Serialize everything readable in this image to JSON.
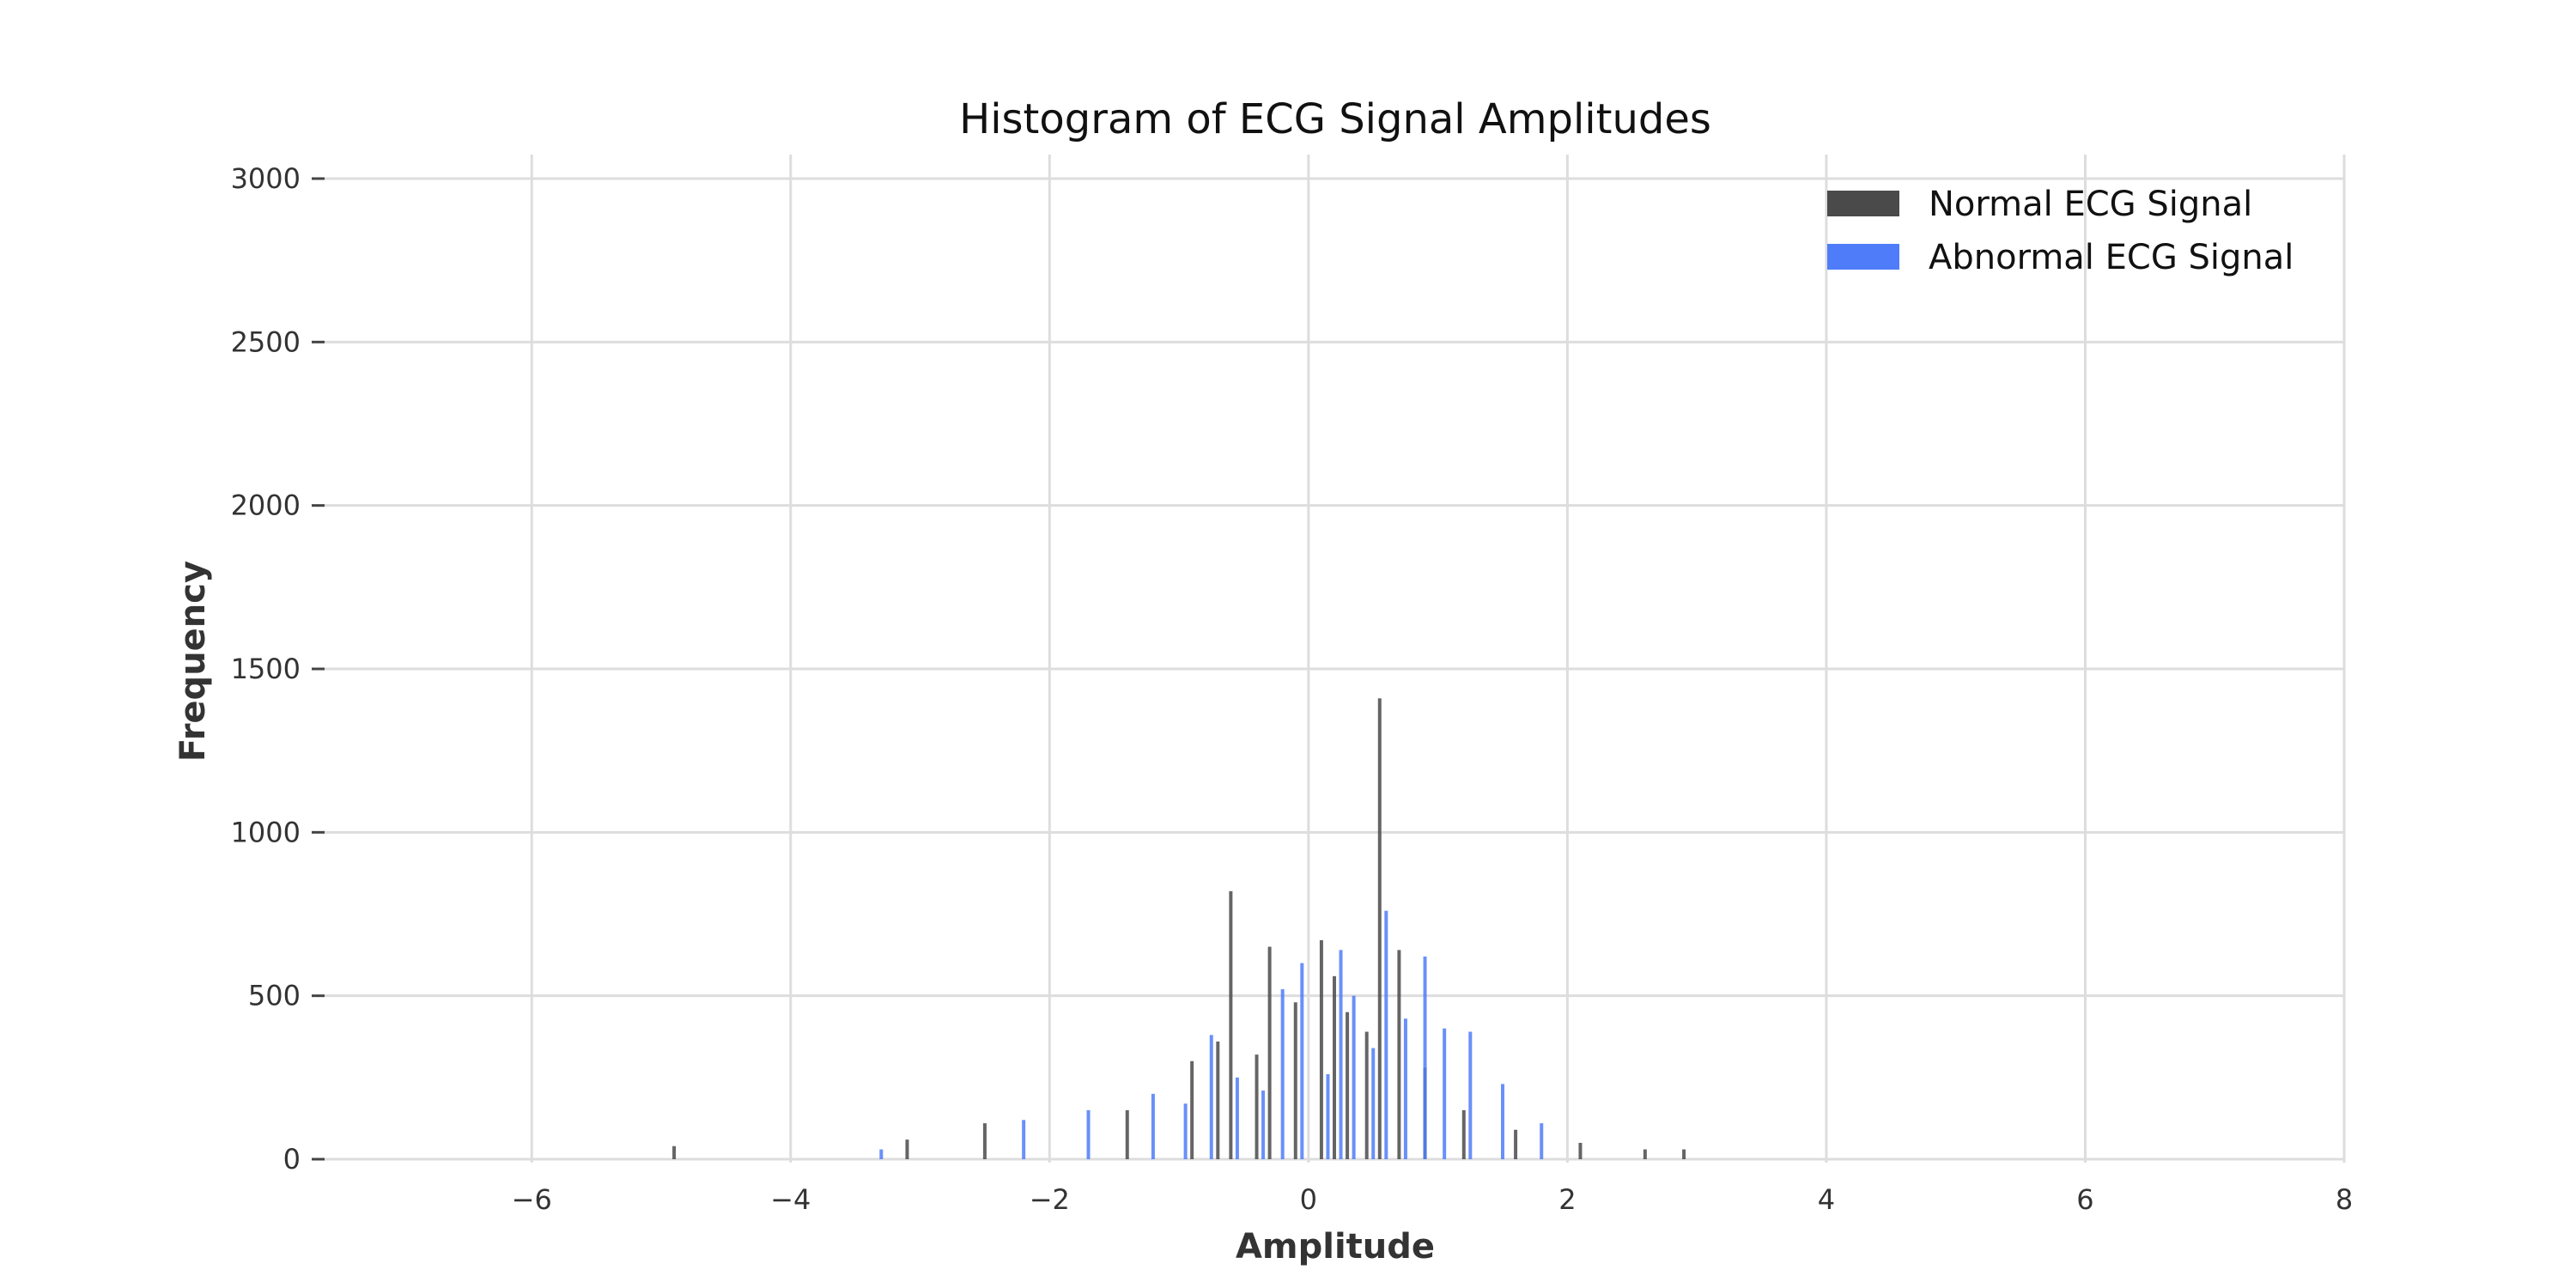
{
  "chart_data": {
    "type": "bar",
    "title": "Histogram of ECG Signal Amplitudes",
    "xlabel": "Amplitude",
    "ylabel": "Frequency",
    "xlim": [
      -7.6,
      8.0
    ],
    "ylim": [
      0,
      3000
    ],
    "x_ticks": [
      -6,
      -4,
      -2,
      0,
      2,
      4,
      6,
      8
    ],
    "x_tick_labels": [
      "−6",
      "−4",
      "−2",
      "0",
      "2",
      "4",
      "6",
      "8"
    ],
    "y_ticks": [
      0,
      500,
      1000,
      1500,
      2000,
      2500,
      3000
    ],
    "y_tick_labels": [
      "0",
      "500",
      "1000",
      "1500",
      "2000",
      "2500",
      "3000"
    ],
    "grid": true,
    "legend_position": "top-right",
    "series": [
      {
        "name": "Normal ECG Signal",
        "color": "#4a4a4a",
        "x": [
          -4.9,
          -3.1,
          -2.5,
          -1.4,
          -0.9,
          -0.7,
          -0.6,
          -0.4,
          -0.3,
          -0.1,
          0.1,
          0.2,
          0.3,
          0.45,
          0.55,
          0.7,
          0.9,
          1.2,
          1.6,
          2.1,
          2.6,
          2.9
        ],
        "values": [
          40,
          60,
          110,
          150,
          300,
          360,
          820,
          320,
          650,
          480,
          670,
          560,
          450,
          390,
          1410,
          640,
          280,
          150,
          90,
          50,
          30,
          30
        ]
      },
      {
        "name": "Abnormal ECG Signal",
        "color": "#4f7df9",
        "x": [
          -3.3,
          -2.2,
          -1.7,
          -1.2,
          -0.95,
          -0.75,
          -0.55,
          -0.35,
          -0.2,
          -0.05,
          0.15,
          0.25,
          0.35,
          0.5,
          0.6,
          0.75,
          0.9,
          1.05,
          1.25,
          1.5,
          1.8
        ],
        "values": [
          30,
          120,
          150,
          200,
          170,
          380,
          250,
          210,
          520,
          600,
          260,
          640,
          500,
          340,
          760,
          430,
          620,
          400,
          390,
          230,
          110
        ]
      }
    ]
  }
}
